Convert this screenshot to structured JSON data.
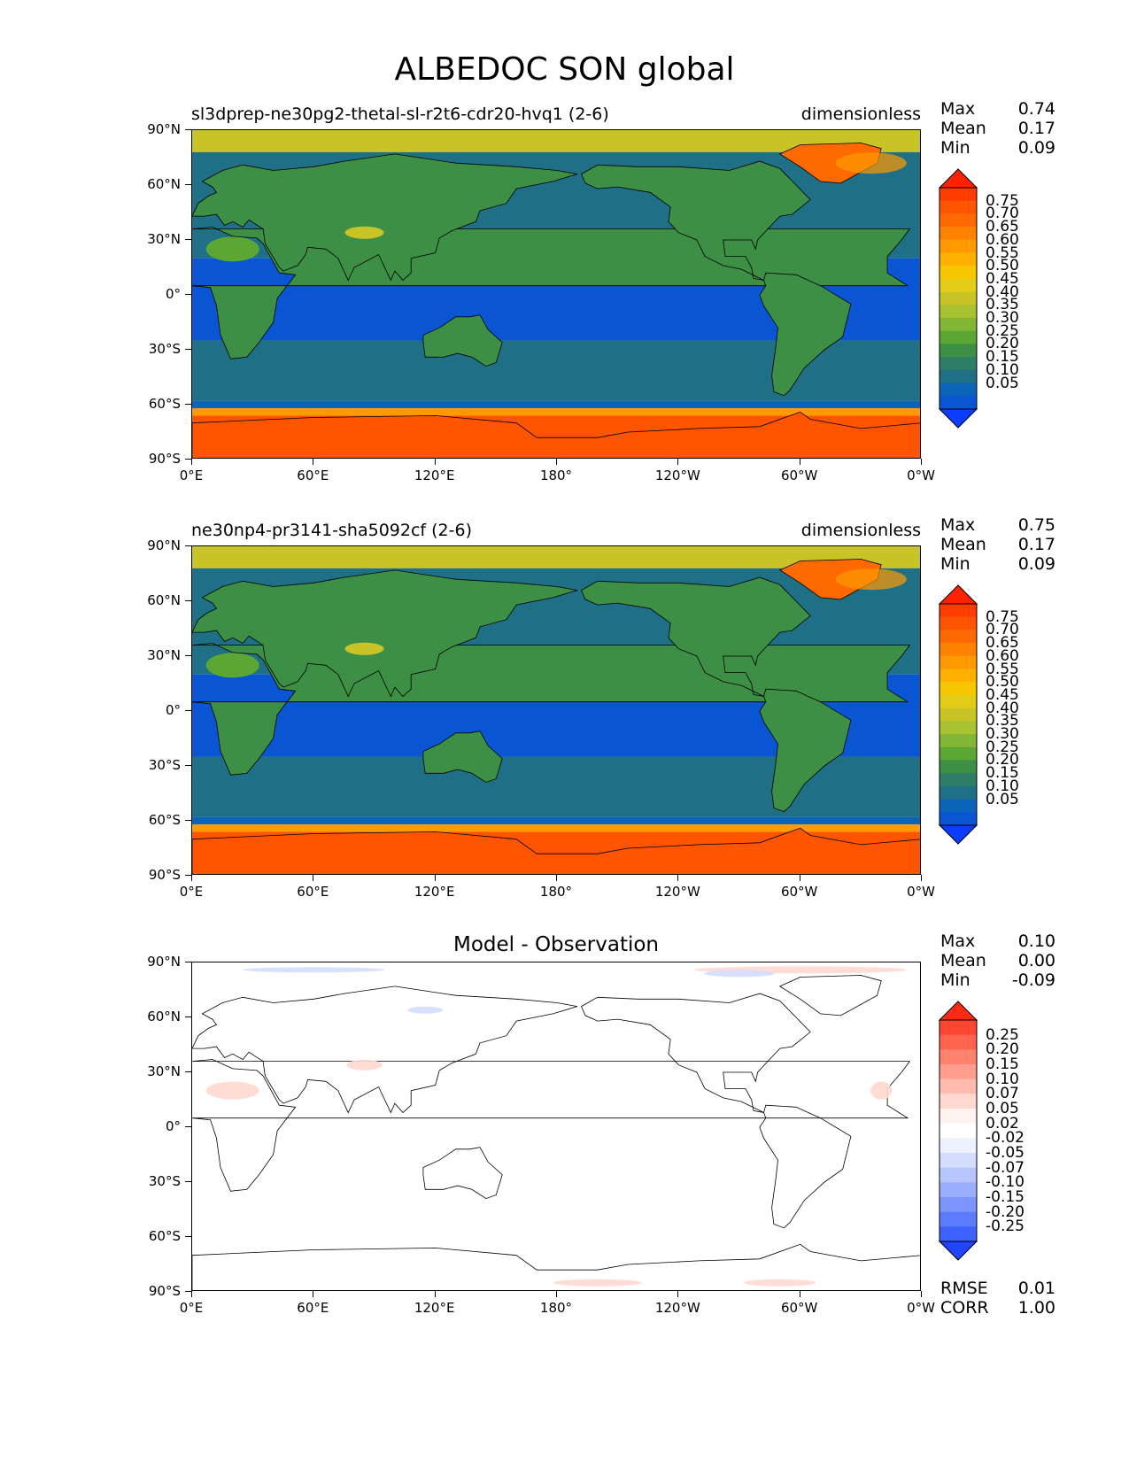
{
  "figure": {
    "title": "ALBEDOC SON global"
  },
  "axes": {
    "y_ticks": [
      "90°N",
      "60°N",
      "30°N",
      "0°",
      "30°S",
      "60°S",
      "90°S"
    ],
    "x_ticks": [
      "0°E",
      "60°E",
      "120°E",
      "180°",
      "120°W",
      "60°W",
      "0°W"
    ]
  },
  "panels": [
    {
      "left_title": "sl3dprep-ne30pg2-thetal-sl-r2t6-cdr20-hvq1 (2-6)",
      "right_title": "dimensionless",
      "center_title": "",
      "stats": {
        "max_label": "Max",
        "max": "0.74",
        "mean_label": "Mean",
        "mean": "0.17",
        "min_label": "Min",
        "min": "0.09"
      },
      "colorbar": {
        "labels": [
          "0.75",
          "0.70",
          "0.65",
          "0.60",
          "0.55",
          "0.50",
          "0.45",
          "0.40",
          "0.35",
          "0.30",
          "0.25",
          "0.20",
          "0.15",
          "0.10",
          "0.05"
        ],
        "colors": [
          "#ff2200",
          "#ff3c00",
          "#ff5500",
          "#ff6a00",
          "#ff8200",
          "#ff9a00",
          "#ffb000",
          "#f6c700",
          "#e4cd18",
          "#c8c428",
          "#a8c232",
          "#82b634",
          "#5ca734",
          "#3c8f44",
          "#2e7d67",
          "#1f6f87",
          "#0b64b8",
          "#0a55d4",
          "#0b3dff"
        ]
      }
    },
    {
      "left_title": "ne30np4-pr3141-sha5092cf (2-6)",
      "right_title": "dimensionless",
      "center_title": "",
      "stats": {
        "max_label": "Max",
        "max": "0.75",
        "mean_label": "Mean",
        "mean": "0.17",
        "min_label": "Min",
        "min": "0.09"
      },
      "colorbar": {
        "labels": [
          "0.75",
          "0.70",
          "0.65",
          "0.60",
          "0.55",
          "0.50",
          "0.45",
          "0.40",
          "0.35",
          "0.30",
          "0.25",
          "0.20",
          "0.15",
          "0.10",
          "0.05"
        ],
        "colors": [
          "#ff2200",
          "#ff3c00",
          "#ff5500",
          "#ff6a00",
          "#ff8200",
          "#ff9a00",
          "#ffb000",
          "#f6c700",
          "#e4cd18",
          "#c8c428",
          "#a8c232",
          "#82b634",
          "#5ca734",
          "#3c8f44",
          "#2e7d67",
          "#1f6f87",
          "#0b64b8",
          "#0a55d4",
          "#0b3dff"
        ]
      }
    },
    {
      "left_title": "",
      "right_title": "",
      "center_title": "Model - Observation",
      "stats": {
        "max_label": "Max",
        "max": "0.10",
        "mean_label": "Mean",
        "mean": "0.00",
        "min_label": "Min",
        "min": "-0.09"
      },
      "colorbar": {
        "labels": [
          "0.25",
          "0.20",
          "0.15",
          "0.10",
          "0.07",
          "0.05",
          "0.02",
          "-0.02",
          "-0.05",
          "-0.07",
          "-0.10",
          "-0.15",
          "-0.20",
          "-0.25"
        ],
        "colors": [
          "#ff2a14",
          "#ff4632",
          "#ff6450",
          "#ff826e",
          "#ff9e8c",
          "#ffbcae",
          "#ffd8cf",
          "#fff2ef",
          "#ffffff",
          "#eef2ff",
          "#d4ddff",
          "#b8c6ff",
          "#9aaeff",
          "#7d96ff",
          "#5c7cff",
          "#3d62ff",
          "#1f45ff"
        ]
      },
      "rmse_label": "RMSE",
      "rmse": "0.01",
      "corr_label": "CORR",
      "corr": "1.00"
    }
  ],
  "map_colors": {
    "ocean_tropical": "#0a55d4",
    "ocean_mid": "#1f6f87",
    "ocean_sub": "#0b64b8",
    "land_low": "#3c8f44",
    "land_mid": "#5ca734",
    "desert": "#c8c428",
    "arctic": "#c8c428",
    "ice_edge": "#ff9a00",
    "antarctic": "#ff5500",
    "greenland": "#ff6a00",
    "coast": "#000000",
    "diff_bg": "#ffffff",
    "diff_pos": "#ffd8cf",
    "diff_neg": "#d4ddff"
  }
}
